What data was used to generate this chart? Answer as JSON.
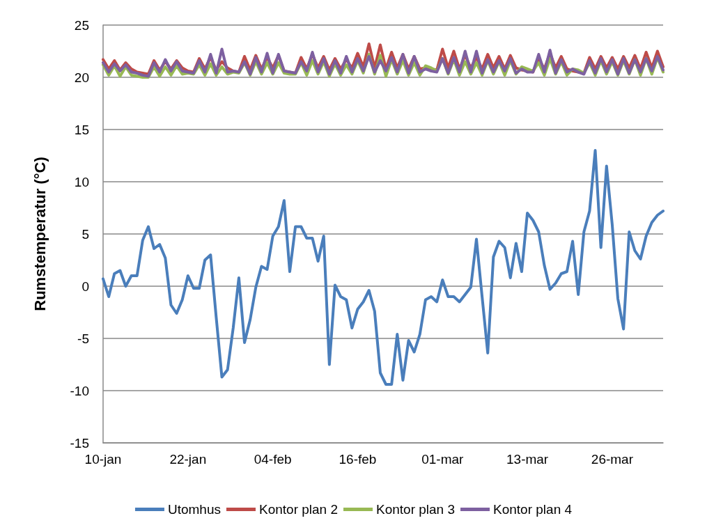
{
  "chart_data": {
    "type": "line",
    "ylabel": "Rumstemperatur (°C)",
    "categories": [
      "10-jan",
      null,
      null,
      null,
      null,
      null,
      null,
      null,
      null,
      null,
      null,
      null,
      null,
      null,
      null,
      "22-jan",
      null,
      null,
      null,
      null,
      null,
      null,
      null,
      null,
      null,
      null,
      null,
      null,
      null,
      null,
      "04-feb",
      null,
      null,
      null,
      null,
      null,
      null,
      null,
      null,
      null,
      null,
      null,
      null,
      null,
      null,
      "16-feb",
      null,
      null,
      null,
      null,
      null,
      null,
      null,
      null,
      null,
      null,
      null,
      null,
      null,
      null,
      "01-mar",
      null,
      null,
      null,
      null,
      null,
      null,
      null,
      null,
      null,
      null,
      null,
      null,
      null,
      null,
      "13-mar",
      null,
      null,
      null,
      null,
      null,
      null,
      null,
      null,
      null,
      null,
      null,
      null,
      null,
      null,
      "26-mar",
      null,
      null,
      null,
      null,
      null,
      null,
      null,
      null,
      null
    ],
    "series": [
      {
        "name": "Utomhus",
        "color": "#4a7ebb",
        "values": [
          0.7,
          -1.0,
          1.2,
          1.5,
          0,
          1.0,
          1.0,
          4.4,
          5.7,
          3.6,
          4.0,
          2.7,
          -1.8,
          -2.6,
          -1.3,
          1.0,
          -0.2,
          -0.2,
          2.5,
          3.0,
          -3.0,
          -8.7,
          -8.0,
          -4.0,
          0.8,
          -5.4,
          -3.2,
          -0.1,
          1.9,
          1.6,
          4.8,
          5.7,
          8.2,
          1.4,
          5.7,
          5.7,
          4.6,
          4.6,
          2.4,
          4.8,
          -7.5,
          0.1,
          -1.0,
          -1.3,
          -4.0,
          -2.2,
          -1.5,
          -0.4,
          -2.4,
          -8.3,
          -9.4,
          -9.4,
          -4.6,
          -9.0,
          -5.2,
          -6.3,
          -4.6,
          -1.3,
          -1.0,
          -1.5,
          0.6,
          -1.0,
          -1.0,
          -1.5,
          -0.8,
          -0.1,
          4.5,
          -1.0,
          -6.4,
          2.8,
          4.3,
          3.7,
          0.8,
          4.1,
          1.4,
          7.0,
          6.3,
          5.2,
          2.0,
          -0.3,
          0.3,
          1.2,
          1.4,
          4.3,
          -0.8,
          5.2,
          7.2,
          13.0,
          3.7,
          11.5,
          5.9,
          -1.2,
          -4.1,
          5.2,
          3.4,
          2.6,
          4.8,
          6.1,
          6.8,
          7.2
        ]
      },
      {
        "name": "Kontor plan 2",
        "color": "#be4b48",
        "values": [
          21.7,
          20.8,
          21.6,
          20.7,
          21.4,
          20.8,
          20.5,
          20.4,
          20.3,
          21.6,
          20.7,
          21.5,
          20.8,
          21.6,
          20.9,
          20.6,
          20.5,
          21.8,
          20.8,
          21.9,
          20.7,
          21.5,
          20.9,
          20.6,
          20.5,
          22.0,
          20.7,
          22.1,
          20.8,
          21.9,
          20.9,
          22.1,
          20.6,
          20.5,
          20.4,
          21.9,
          20.8,
          22.2,
          20.9,
          22.0,
          20.7,
          21.8,
          20.8,
          21.7,
          20.9,
          22.3,
          21.0,
          23.2,
          20.9,
          23.1,
          20.8,
          22.4,
          20.9,
          22.2,
          20.8,
          22.0,
          20.8,
          20.9,
          20.8,
          20.7,
          22.7,
          20.9,
          22.5,
          20.8,
          22.1,
          20.9,
          21.9,
          20.8,
          22.2,
          20.9,
          22.0,
          20.8,
          22.1,
          20.9,
          20.7,
          20.6,
          20.5,
          21.8,
          20.8,
          22.3,
          20.9,
          22.0,
          20.8,
          20.6,
          20.5,
          20.4,
          21.9,
          20.8,
          22.0,
          20.9,
          21.9,
          20.8,
          22.0,
          20.9,
          22.1,
          20.8,
          22.4,
          20.9,
          22.5,
          21.0
        ]
      },
      {
        "name": "Kontor plan 3",
        "color": "#98b954",
        "values": [
          21.2,
          20.2,
          21.1,
          20.1,
          21.0,
          20.2,
          20.1,
          20.0,
          20.0,
          21.0,
          20.1,
          21.0,
          20.2,
          21.1,
          20.3,
          20.4,
          20.3,
          21.2,
          20.2,
          21.3,
          20.2,
          21.0,
          20.3,
          20.5,
          20.4,
          21.4,
          20.2,
          21.5,
          20.3,
          21.4,
          20.3,
          21.4,
          20.4,
          20.3,
          20.3,
          21.4,
          20.2,
          21.6,
          20.3,
          21.5,
          20.1,
          21.3,
          20.2,
          21.2,
          20.3,
          21.6,
          20.4,
          22.2,
          20.3,
          22.1,
          20.1,
          21.7,
          20.3,
          21.6,
          20.2,
          21.4,
          20.2,
          21.1,
          20.9,
          20.6,
          21.8,
          20.3,
          21.7,
          20.2,
          21.5,
          20.3,
          21.4,
          20.2,
          21.6,
          20.3,
          21.5,
          20.2,
          21.6,
          20.3,
          21.0,
          20.8,
          20.6,
          21.4,
          20.2,
          21.8,
          20.3,
          21.5,
          20.2,
          20.8,
          20.7,
          20.4,
          21.4,
          20.2,
          21.6,
          20.3,
          21.5,
          20.2,
          21.6,
          20.3,
          21.7,
          20.2,
          21.8,
          20.3,
          21.9,
          20.5
        ]
      },
      {
        "name": "Kontor plan 4",
        "color": "#7d60a0",
        "values": [
          21.4,
          20.5,
          21.3,
          20.6,
          21.2,
          20.5,
          20.4,
          20.2,
          20.1,
          21.4,
          20.5,
          21.7,
          20.6,
          21.5,
          20.6,
          20.5,
          20.4,
          21.6,
          20.5,
          22.2,
          20.4,
          22.7,
          20.5,
          20.6,
          20.5,
          21.5,
          20.3,
          21.9,
          20.5,
          22.3,
          20.4,
          22.2,
          20.6,
          20.5,
          20.4,
          21.5,
          20.6,
          22.4,
          20.5,
          21.8,
          20.3,
          21.6,
          20.4,
          22.0,
          20.5,
          21.8,
          20.6,
          22.0,
          20.5,
          21.6,
          20.6,
          21.9,
          20.5,
          22.2,
          20.4,
          22.0,
          20.5,
          20.8,
          20.6,
          20.5,
          21.8,
          20.4,
          21.9,
          20.5,
          22.5,
          20.5,
          22.5,
          20.4,
          21.7,
          20.5,
          21.6,
          20.6,
          21.8,
          20.4,
          20.8,
          20.5,
          20.5,
          22.2,
          20.5,
          22.6,
          20.4,
          21.7,
          20.5,
          20.8,
          20.5,
          20.3,
          21.6,
          20.4,
          21.8,
          20.5,
          21.7,
          20.3,
          21.8,
          20.4,
          21.7,
          20.5,
          21.8,
          20.6,
          22.0,
          20.7
        ]
      }
    ],
    "ylim": [
      -15,
      25
    ],
    "yticks": [
      -15,
      -10,
      -5,
      0,
      5,
      10,
      15,
      20,
      25
    ],
    "grid": "y",
    "legend": "bottom",
    "line_style": "solid"
  }
}
